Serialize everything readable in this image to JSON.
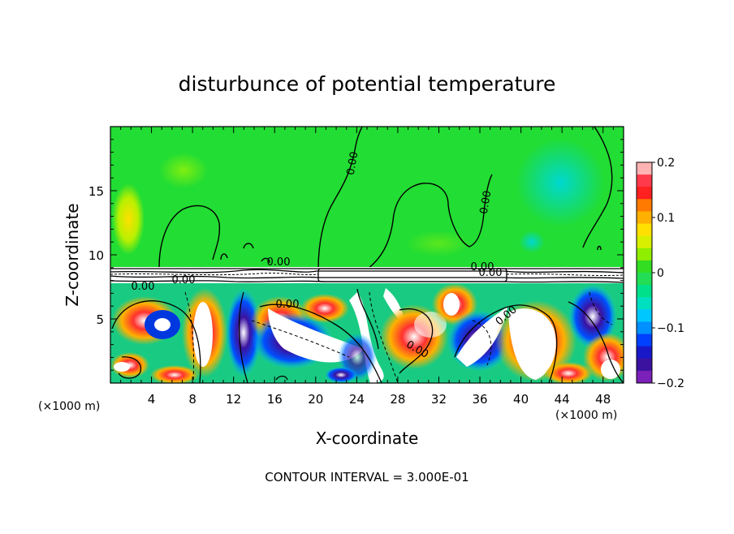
{
  "chart_data": {
    "type": "heatmap",
    "title": "disturbunce of potential temperature",
    "xlabel": "X-coordinate",
    "ylabel": "Z-coordinate",
    "x_unit": "(×1000 m)",
    "x_unit_right": "(×1000 m)",
    "footer": "CONTOUR INTERVAL = 3.000E-01",
    "xlim": [
      0,
      50
    ],
    "ylim": [
      0,
      20
    ],
    "x_ticks": [
      4,
      8,
      12,
      16,
      20,
      24,
      28,
      32,
      36,
      40,
      44,
      48
    ],
    "x_tick_labels": [
      "4",
      "8",
      "12",
      "16",
      "20",
      "24",
      "28",
      "32",
      "36",
      "40",
      "44",
      "48"
    ],
    "y_ticks": [
      5,
      10,
      15
    ],
    "y_tick_labels": [
      "5",
      "10",
      "15"
    ],
    "colorbar": {
      "min": -0.2,
      "max": 0.2,
      "ticks": [
        0.2,
        0.1,
        0,
        -0.1,
        -0.2
      ],
      "tick_labels": [
        "0.2",
        "0.1",
        "0",
        "−0.1",
        "−0.2"
      ],
      "colors": [
        "#ffb3b3",
        "#ff3a4a",
        "#ff2020",
        "#ff7a00",
        "#ffb000",
        "#ffe000",
        "#d8f000",
        "#90ee00",
        "#33dd22",
        "#22dd55",
        "#00e08a",
        "#00e0c0",
        "#00c8ff",
        "#0090ff",
        "#0040ff",
        "#1818c8",
        "#3b12a0",
        "#7b20b8"
      ]
    },
    "contour_labels": [
      "0.00",
      "0.00",
      "0.00",
      "0.00",
      "0.00",
      "0.00",
      "0.00",
      "0.00",
      "0.00",
      "0.00"
    ],
    "background_color": "#22dd33",
    "lower_layer_top_z": 7.8
  }
}
